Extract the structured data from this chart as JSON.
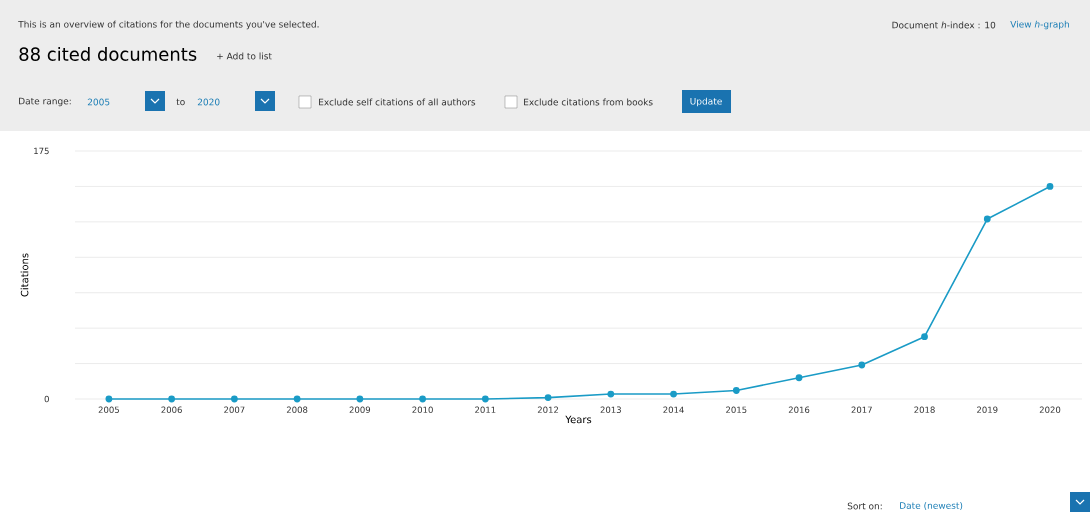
{
  "chart_data": {
    "type": "line",
    "title": "88 cited documents",
    "xlabel": "Years",
    "ylabel": "Citations",
    "categories": [
      "2005",
      "2006",
      "2007",
      "2008",
      "2009",
      "2010",
      "2011",
      "2012",
      "2013",
      "2014",
      "2015",
      "2016",
      "2017",
      "2018",
      "2019",
      "2020"
    ],
    "series": [
      {
        "color": "#1a9bc6",
        "values": [
          0,
          0,
          0,
          0,
          0,
          0,
          0,
          1,
          3.5,
          3.5,
          6,
          15,
          24,
          44,
          127,
          150
        ]
      }
    ],
    "ylim": [
      0,
      175
    ],
    "yticks": [
      0,
      {
        "value": 25,
        "label": null
      },
      {
        "value": 50,
        "label": null
      },
      {
        "value": 75,
        "label": null
      },
      {
        "value": 100,
        "label": null
      },
      {
        "value": 125,
        "label": null
      },
      {
        "value": 150,
        "label": null
      },
      175
    ],
    "grid": "y",
    "marker": "circle",
    "line_style": "solid",
    "annotations": [
      "This is an overview of citations for the documents you've selected.",
      "Document *h*-index : 10",
      "View *h*-graph",
      "+ Add to list",
      "Date range:",
      "2005",
      "to",
      "2020",
      "Exclude self citations of all authors",
      "Exclude citations from books",
      "Update",
      "Sort on:",
      "Date (newest)"
    ]
  }
}
